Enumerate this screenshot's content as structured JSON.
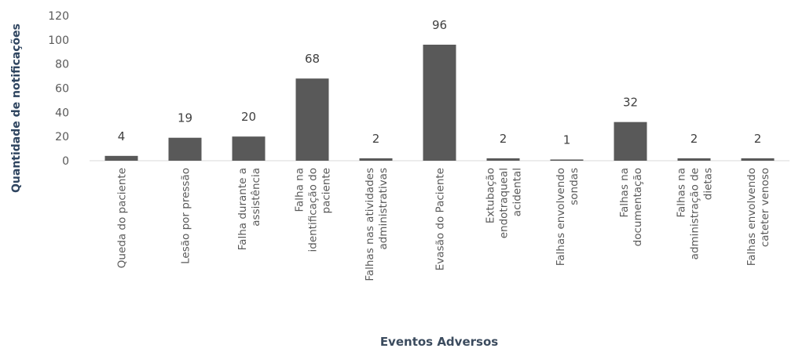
{
  "chart_data": {
    "type": "bar",
    "xlabel": "Eventos Adversos",
    "ylabel": "Quantidade de notificações",
    "ylim": [
      0,
      120
    ],
    "yticks": [
      0,
      20,
      40,
      60,
      80,
      100,
      120
    ],
    "grid": false,
    "bar_color": "#595959",
    "categories": [
      [
        "Queda do paciente"
      ],
      [
        "Lesão por pressão"
      ],
      [
        "Falha durante a",
        "assistência"
      ],
      [
        "Falha na",
        "identificação do",
        "paciente"
      ],
      [
        "Falhas nas atividades",
        "administrativas"
      ],
      [
        "Evasão do Paciente"
      ],
      [
        "Extubação",
        "endotraqueal",
        "acidental"
      ],
      [
        "Falhas envolvendo",
        "sondas"
      ],
      [
        "Falhas na",
        "documentação"
      ],
      [
        "Falhas na",
        "administração de",
        "dietas"
      ],
      [
        "Falhas envolvendo",
        "cateter venoso"
      ]
    ],
    "values": [
      4,
      19,
      20,
      68,
      2,
      96,
      2,
      1,
      32,
      2,
      2
    ]
  }
}
